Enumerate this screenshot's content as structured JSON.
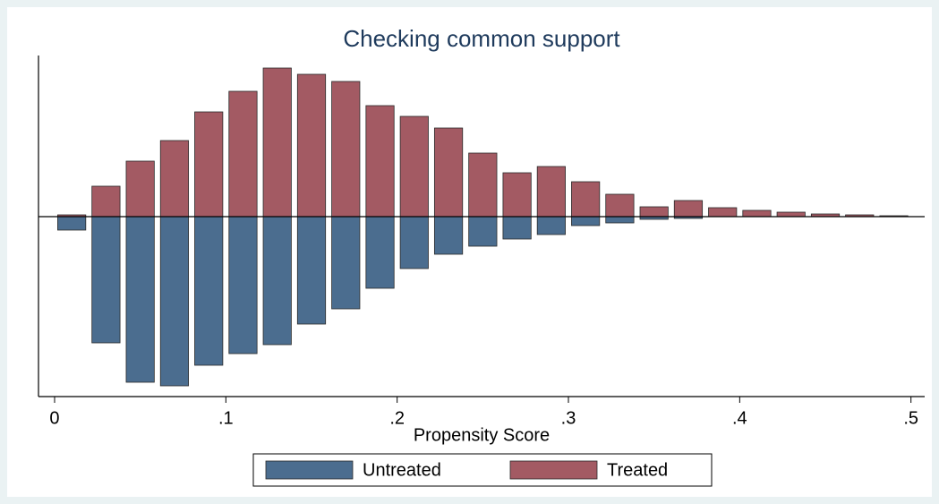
{
  "chart_data": {
    "type": "mirrored_histogram",
    "title": "Checking common support",
    "x_label": "Propensity Score",
    "bins": [
      0,
      0.02,
      0.04,
      0.06,
      0.08,
      0.1,
      0.12,
      0.14,
      0.16,
      0.18,
      0.2,
      0.22,
      0.24,
      0.26,
      0.28,
      0.3,
      0.32,
      0.34,
      0.36,
      0.38,
      0.4,
      0.42,
      0.44,
      0.46,
      0.48,
      0.5
    ],
    "series": [
      {
        "name": "Untreated",
        "color": "#4b6d8f",
        "values": [
          -15,
          -141,
          -185,
          -189,
          -166,
          -153,
          -143,
          -120,
          -103,
          -80,
          -58,
          -42,
          -33,
          -25,
          -20,
          -10,
          -7,
          -3,
          -2,
          0,
          0,
          0,
          0,
          0,
          0
        ]
      },
      {
        "name": "Treated",
        "color": "#a35a63",
        "values": [
          2,
          34,
          62,
          85,
          117,
          140,
          166,
          159,
          151,
          124,
          112,
          99,
          71,
          49,
          56,
          39,
          25,
          11,
          18,
          10,
          7,
          5,
          3,
          2,
          1
        ]
      }
    ],
    "xlim": [
      -0.0094,
      0.508
    ],
    "xticks": [
      0,
      {
        "value": 0.1,
        "label": ".1"
      },
      {
        "value": 0.2,
        "label": ".2"
      },
      {
        "value": 0.3,
        "label": ".3"
      },
      {
        "value": 0.4,
        "label": ".4"
      },
      {
        "value": 0.5,
        "label": ".5"
      }
    ],
    "ylim": [
      -201,
      180
    ],
    "legend": "bottom"
  }
}
